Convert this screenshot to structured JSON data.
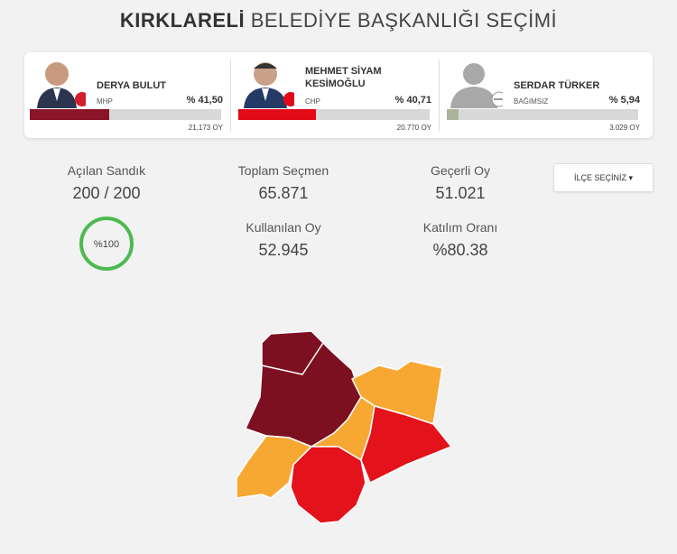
{
  "header": {
    "title_bold": "KIRKLARELİ",
    "title_rest": "BELEDİYE BAŞKANLIĞI SEÇİMİ"
  },
  "candidates": [
    {
      "name": "DERYA BULUT",
      "party": "MHP",
      "share": {
        "value": 41.5,
        "label": "% 41,50"
      },
      "votes": "21.173 OY",
      "color": "#8a1526"
    },
    {
      "name": "MEHMET SİYAM KESİMOĞLU",
      "party": "CHP",
      "share": {
        "value": 40.71,
        "label": "% 40,71"
      },
      "votes": "20.770 OY",
      "color": "#e30a17"
    },
    {
      "name": "SERDAR TÜRKER",
      "party": "BAĞIMSIZ",
      "share": {
        "value": 5.94,
        "label": "% 5,94"
      },
      "votes": "3.029 OY",
      "color": "#aab39a"
    }
  ],
  "stats": {
    "opened": {
      "label": "Açılan Sandık",
      "value": "200 / 200",
      "progress": "%100"
    },
    "voters": {
      "label": "Toplam Seçmen",
      "value": "65.871"
    },
    "valid": {
      "label": "Geçerli Oy",
      "value": "51.021"
    },
    "used": {
      "label": "Kullanılan Oy",
      "value": "52.945"
    },
    "turnout": {
      "label": "Katılım Oranı",
      "value": "%80.38"
    }
  },
  "dropdown": "İLÇE SEÇİNİZ"
}
